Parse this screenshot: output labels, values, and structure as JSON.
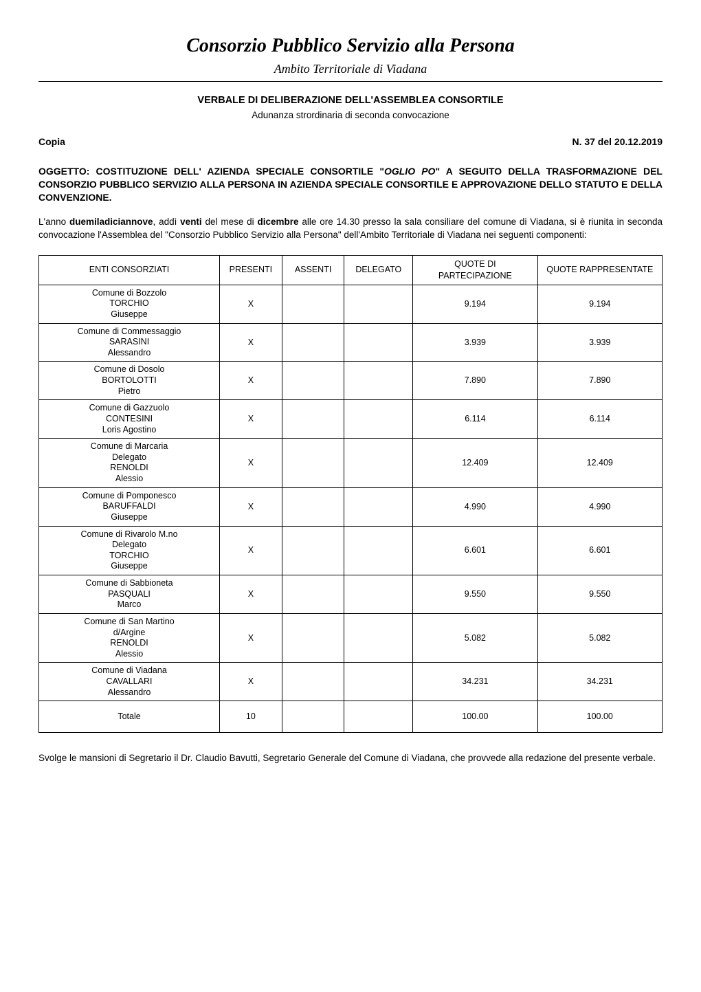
{
  "header": {
    "title": "Consorzio Pubblico Servizio alla Persona",
    "subtitle": "Ambito Territoriale di Viadana"
  },
  "verbale": {
    "heading": "VERBALE DI DELIBERAZIONE DELL'ASSEMBLEA CONSORTILE",
    "sub": "Adunanza strordinaria di seconda convocazione"
  },
  "copia": {
    "left": "Copia",
    "right": "N.   37 del 20.12.2019"
  },
  "oggetto": {
    "prefix": "OGGETTO: COSTITUZIONE DELL' AZIENDA SPECIALE CONSORTILE \"",
    "italic": "OGLIO PO",
    "suffix": "\" A SEGUITO DELLA TRASFORMAZIONE DEL CONSORZIO PUBBLICO SERVIZIO ALLA PERSONA IN AZIENDA SPECIALE CONSORTILE E APPROVAZIONE DELLO STATUTO E DELLA CONVENZIONE."
  },
  "narrative": {
    "p1_a": "L'anno ",
    "p1_b1": "duemiladiciannove",
    "p1_c": ", addì ",
    "p1_b2": "venti",
    "p1_d": " del mese di ",
    "p1_b3": "dicembre",
    "p1_e": " alle ore 14.30 presso la sala consiliare del comune di Viadana, si è riunita in seconda convocazione l'Assemblea del \"Consorzio Pubblico Servizio alla Persona\" dell'Ambito Territoriale di Viadana nei seguenti componenti:"
  },
  "table": {
    "col_widths_pct": [
      29,
      10,
      10,
      11,
      20,
      20
    ],
    "headers": {
      "enti": "ENTI CONSORZIATI",
      "presenti": "PRESENTI",
      "assenti": "ASSENTI",
      "delegato": "DELEGATO",
      "quote_part": "QUOTE DI PARTECIPAZIONE",
      "quote_rapp": "QUOTE RAPPRESENTATE"
    },
    "rows": [
      {
        "ente_lines": [
          "Comune di Bozzolo",
          "TORCHIO",
          "Giuseppe"
        ],
        "presenti": "X",
        "assenti": "",
        "delegato": "",
        "qp": "9.194",
        "qr": "9.194"
      },
      {
        "ente_lines": [
          "Comune di Commessaggio",
          "SARASINI",
          "Alessandro"
        ],
        "presenti": "X",
        "assenti": "",
        "delegato": "",
        "qp": "3.939",
        "qr": "3.939"
      },
      {
        "ente_lines": [
          "Comune di Dosolo",
          "BORTOLOTTI",
          "Pietro"
        ],
        "presenti": "X",
        "assenti": "",
        "delegato": "",
        "qp": "7.890",
        "qr": "7.890"
      },
      {
        "ente_lines": [
          "Comune di Gazzuolo",
          "CONTESINI",
          "Loris Agostino"
        ],
        "presenti": "X",
        "assenti": "",
        "delegato": "",
        "qp": "6.114",
        "qr": "6.114"
      },
      {
        "ente_lines": [
          "Comune di Marcaria",
          "Delegato",
          "RENOLDI",
          "Alessio"
        ],
        "presenti": "X",
        "assenti": "",
        "delegato": "",
        "qp": "12.409",
        "qr": "12.409"
      },
      {
        "ente_lines": [
          "Comune di Pomponesco",
          "BARUFFALDI",
          "Giuseppe"
        ],
        "presenti": "X",
        "assenti": "",
        "delegato": "",
        "qp": "4.990",
        "qr": "4.990"
      },
      {
        "ente_lines": [
          "Comune di Rivarolo M.no",
          "Delegato",
          "TORCHIO",
          "Giuseppe"
        ],
        "presenti": "X",
        "assenti": "",
        "delegato": "",
        "qp": "6.601",
        "qr": "6.601"
      },
      {
        "ente_lines": [
          "Comune di Sabbioneta",
          "PASQUALI",
          "Marco"
        ],
        "presenti": "X",
        "assenti": "",
        "delegato": "",
        "qp": "9.550",
        "qr": "9.550"
      },
      {
        "ente_lines": [
          "Comune di San Martino",
          "d/Argine",
          "RENOLDI",
          "Alessio"
        ],
        "presenti": "X",
        "assenti": "",
        "delegato": "",
        "qp": "5.082",
        "qr": "5.082"
      },
      {
        "ente_lines": [
          "Comune di Viadana",
          "CAVALLARI",
          "Alessandro"
        ],
        "presenti": "X",
        "assenti": "",
        "delegato": "",
        "qp": "34.231",
        "qr": "34.231"
      }
    ],
    "totale": {
      "label": "Totale",
      "presenti": "10",
      "assenti": "",
      "delegato": "",
      "qp": "100.00",
      "qr": "100.00"
    }
  },
  "closing": {
    "text": "Svolge le mansioni di Segretario il Dr. Claudio Bavutti, Segretario Generale del Comune di Viadana, che provvede alla redazione del presente verbale."
  },
  "style": {
    "page_bg": "#ffffff",
    "text_color": "#000000",
    "border_color": "#000000",
    "body_font_size_pt": 10,
    "title_font_size_pt": 21,
    "subtitle_font_size_pt": 14
  }
}
